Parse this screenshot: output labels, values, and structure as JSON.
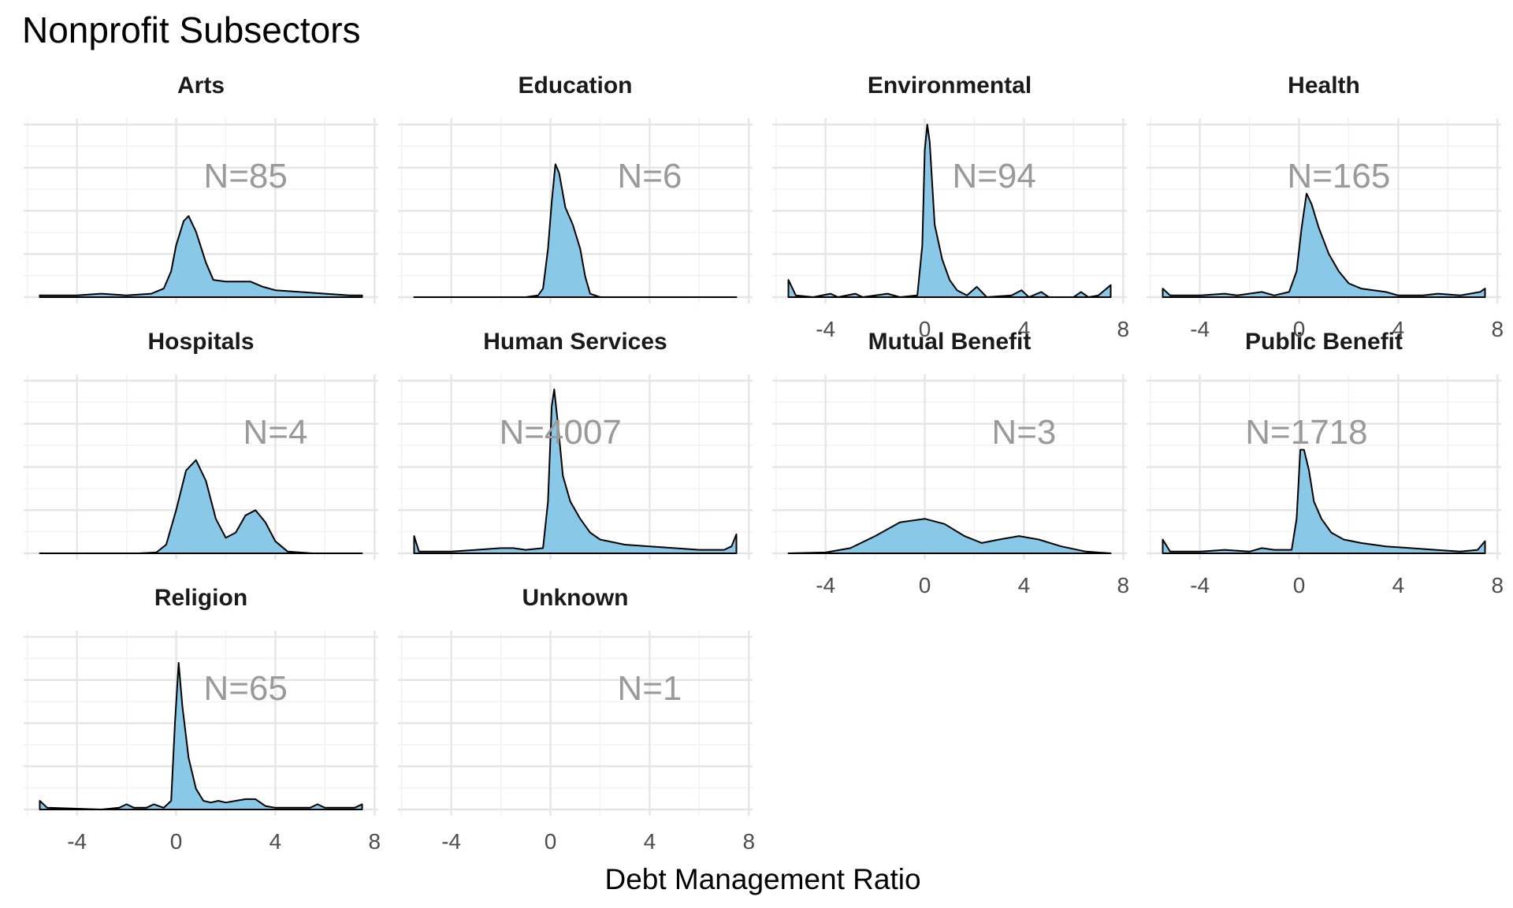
{
  "chart_data": {
    "type": "area",
    "chart_kind": "faceted density",
    "title": "Nonprofit Subsectors",
    "xlabel": "Debt Management Ratio",
    "ylabel": "",
    "xlim": [
      -5.5,
      7.5
    ],
    "x_ticks": [
      -4,
      0,
      4,
      8
    ],
    "x_tick_labels": [
      "-4",
      "0",
      "4",
      "8"
    ],
    "grid": true,
    "fill_color": "#89c8e6",
    "line_color": "#000000",
    "annotation_color": "#9a9a9a",
    "panels": [
      {
        "name": "Arts",
        "annotation": "N=85",
        "annotation_x": 2.8,
        "x_axis_labels_shown": false,
        "density": [
          [
            -5.5,
            0.01
          ],
          [
            -4,
            0.01
          ],
          [
            -3,
            0.02
          ],
          [
            -2,
            0.01
          ],
          [
            -1,
            0.02
          ],
          [
            -0.5,
            0.05
          ],
          [
            -0.2,
            0.15
          ],
          [
            0,
            0.3
          ],
          [
            0.3,
            0.44
          ],
          [
            0.5,
            0.47
          ],
          [
            0.8,
            0.38
          ],
          [
            1.2,
            0.2
          ],
          [
            1.5,
            0.1
          ],
          [
            2,
            0.09
          ],
          [
            2.5,
            0.09
          ],
          [
            3,
            0.09
          ],
          [
            3.5,
            0.06
          ],
          [
            4,
            0.04
          ],
          [
            5,
            0.03
          ],
          [
            6,
            0.02
          ],
          [
            7,
            0.01
          ],
          [
            7.5,
            0.01
          ]
        ]
      },
      {
        "name": "Education",
        "annotation": "N=6",
        "annotation_x": 4.0,
        "x_axis_labels_shown": false,
        "density": [
          [
            -5.5,
            0
          ],
          [
            -1,
            0
          ],
          [
            -0.5,
            0.01
          ],
          [
            -0.3,
            0.05
          ],
          [
            -0.1,
            0.28
          ],
          [
            0.05,
            0.55
          ],
          [
            0.2,
            0.77
          ],
          [
            0.35,
            0.72
          ],
          [
            0.6,
            0.52
          ],
          [
            0.9,
            0.42
          ],
          [
            1.2,
            0.28
          ],
          [
            1.4,
            0.12
          ],
          [
            1.6,
            0.02
          ],
          [
            2,
            0
          ],
          [
            7.5,
            0
          ]
        ]
      },
      {
        "name": "Environmental",
        "annotation": "N=94",
        "annotation_x": 2.8,
        "x_axis_labels_shown": true,
        "density": [
          [
            -5.5,
            0.1
          ],
          [
            -5.2,
            0.01
          ],
          [
            -4.5,
            0
          ],
          [
            -3.8,
            0.02
          ],
          [
            -3.5,
            0
          ],
          [
            -2.8,
            0.02
          ],
          [
            -2.5,
            0
          ],
          [
            -1.5,
            0.02
          ],
          [
            -1,
            0
          ],
          [
            -0.3,
            0.01
          ],
          [
            -0.1,
            0.3
          ],
          [
            0,
            0.85
          ],
          [
            0.1,
            1
          ],
          [
            0.2,
            0.9
          ],
          [
            0.4,
            0.42
          ],
          [
            0.7,
            0.22
          ],
          [
            1,
            0.1
          ],
          [
            1.3,
            0.04
          ],
          [
            1.7,
            0.01
          ],
          [
            2.1,
            0.06
          ],
          [
            2.5,
            0
          ],
          [
            3.5,
            0.01
          ],
          [
            3.9,
            0.04
          ],
          [
            4.2,
            0
          ],
          [
            4.7,
            0.03
          ],
          [
            5,
            0
          ],
          [
            6,
            0
          ],
          [
            6.3,
            0.03
          ],
          [
            6.6,
            0
          ],
          [
            7,
            0.01
          ],
          [
            7.5,
            0.07
          ]
        ]
      },
      {
        "name": "Health",
        "annotation": "N=165",
        "annotation_x": 1.6,
        "x_axis_labels_shown": true,
        "density": [
          [
            -5.5,
            0.05
          ],
          [
            -5.2,
            0.01
          ],
          [
            -4,
            0.01
          ],
          [
            -3,
            0.02
          ],
          [
            -2.5,
            0.01
          ],
          [
            -1.5,
            0.03
          ],
          [
            -1,
            0.01
          ],
          [
            -0.4,
            0.03
          ],
          [
            -0.1,
            0.15
          ],
          [
            0.1,
            0.4
          ],
          [
            0.3,
            0.6
          ],
          [
            0.5,
            0.54
          ],
          [
            0.8,
            0.4
          ],
          [
            1.2,
            0.25
          ],
          [
            1.6,
            0.15
          ],
          [
            2,
            0.08
          ],
          [
            2.5,
            0.05
          ],
          [
            3,
            0.04
          ],
          [
            3.5,
            0.03
          ],
          [
            4,
            0.01
          ],
          [
            5,
            0.01
          ],
          [
            5.6,
            0.02
          ],
          [
            6.5,
            0.01
          ],
          [
            7.3,
            0.03
          ],
          [
            7.5,
            0.05
          ]
        ]
      },
      {
        "name": "Hospitals",
        "annotation": "N=4",
        "annotation_x": 4.0,
        "x_axis_labels_shown": false,
        "density": [
          [
            -5.5,
            0
          ],
          [
            -1.5,
            0
          ],
          [
            -0.8,
            0.005
          ],
          [
            -0.4,
            0.05
          ],
          [
            0,
            0.25
          ],
          [
            0.4,
            0.48
          ],
          [
            0.8,
            0.54
          ],
          [
            1.2,
            0.42
          ],
          [
            1.6,
            0.2
          ],
          [
            2,
            0.09
          ],
          [
            2.4,
            0.12
          ],
          [
            2.8,
            0.22
          ],
          [
            3.2,
            0.25
          ],
          [
            3.6,
            0.18
          ],
          [
            4,
            0.07
          ],
          [
            4.5,
            0.01
          ],
          [
            5.5,
            0
          ],
          [
            7.5,
            0
          ]
        ]
      },
      {
        "name": "Human Services",
        "annotation": "N=4007",
        "annotation_x": 0.4,
        "x_axis_labels_shown": false,
        "density": [
          [
            -5.5,
            0.1
          ],
          [
            -5.3,
            0.01
          ],
          [
            -4,
            0.01
          ],
          [
            -3,
            0.02
          ],
          [
            -2,
            0.03
          ],
          [
            -1.5,
            0.03
          ],
          [
            -1,
            0.02
          ],
          [
            -0.3,
            0.03
          ],
          [
            -0.1,
            0.3
          ],
          [
            0.05,
            0.85
          ],
          [
            0.15,
            0.95
          ],
          [
            0.3,
            0.75
          ],
          [
            0.5,
            0.45
          ],
          [
            0.8,
            0.3
          ],
          [
            1.2,
            0.2
          ],
          [
            1.6,
            0.12
          ],
          [
            2,
            0.08
          ],
          [
            3,
            0.05
          ],
          [
            4,
            0.04
          ],
          [
            5,
            0.03
          ],
          [
            6,
            0.02
          ],
          [
            7,
            0.02
          ],
          [
            7.3,
            0.04
          ],
          [
            7.5,
            0.11
          ]
        ]
      },
      {
        "name": "Mutual Benefit",
        "annotation": "N=3",
        "annotation_x": 4.0,
        "x_axis_labels_shown": true,
        "density": [
          [
            -5.5,
            0
          ],
          [
            -4,
            0.005
          ],
          [
            -3,
            0.03
          ],
          [
            -2,
            0.1
          ],
          [
            -1,
            0.18
          ],
          [
            0,
            0.2
          ],
          [
            0.8,
            0.17
          ],
          [
            1.6,
            0.1
          ],
          [
            2.3,
            0.06
          ],
          [
            3,
            0.08
          ],
          [
            3.8,
            0.1
          ],
          [
            4.6,
            0.08
          ],
          [
            5.5,
            0.04
          ],
          [
            6.5,
            0.01
          ],
          [
            7.5,
            0
          ]
        ]
      },
      {
        "name": "Public Benefit",
        "annotation": "N=1718",
        "annotation_x": 0.3,
        "x_axis_labels_shown": true,
        "density": [
          [
            -5.5,
            0.08
          ],
          [
            -5.2,
            0.01
          ],
          [
            -4,
            0.01
          ],
          [
            -3,
            0.02
          ],
          [
            -2,
            0.01
          ],
          [
            -1.5,
            0.03
          ],
          [
            -1,
            0.02
          ],
          [
            -0.3,
            0.02
          ],
          [
            -0.1,
            0.2
          ],
          [
            0.05,
            0.6
          ],
          [
            0.2,
            0.6
          ],
          [
            0.4,
            0.48
          ],
          [
            0.6,
            0.3
          ],
          [
            0.9,
            0.2
          ],
          [
            1.3,
            0.12
          ],
          [
            1.8,
            0.08
          ],
          [
            2.5,
            0.06
          ],
          [
            3.5,
            0.04
          ],
          [
            4.5,
            0.03
          ],
          [
            5.5,
            0.02
          ],
          [
            6.5,
            0.01
          ],
          [
            7.2,
            0.02
          ],
          [
            7.5,
            0.07
          ]
        ]
      },
      {
        "name": "Religion",
        "annotation": "N=65",
        "annotation_x": 2.8,
        "x_axis_labels_shown": true,
        "density": [
          [
            -5.5,
            0.05
          ],
          [
            -5.2,
            0.01
          ],
          [
            -3,
            0
          ],
          [
            -2.3,
            0.01
          ],
          [
            -2,
            0.03
          ],
          [
            -1.7,
            0.01
          ],
          [
            -1.2,
            0.01
          ],
          [
            -0.9,
            0.03
          ],
          [
            -0.5,
            0.01
          ],
          [
            -0.2,
            0.05
          ],
          [
            -0.05,
            0.5
          ],
          [
            0.1,
            0.85
          ],
          [
            0.25,
            0.6
          ],
          [
            0.5,
            0.3
          ],
          [
            0.8,
            0.12
          ],
          [
            1.1,
            0.05
          ],
          [
            1.4,
            0.04
          ],
          [
            1.7,
            0.05
          ],
          [
            2,
            0.04
          ],
          [
            2.4,
            0.05
          ],
          [
            2.8,
            0.06
          ],
          [
            3.2,
            0.06
          ],
          [
            3.6,
            0.02
          ],
          [
            4,
            0.01
          ],
          [
            4.6,
            0.01
          ],
          [
            5.4,
            0.01
          ],
          [
            5.7,
            0.03
          ],
          [
            6,
            0.01
          ],
          [
            7.2,
            0.01
          ],
          [
            7.5,
            0.03
          ]
        ]
      },
      {
        "name": "Unknown",
        "annotation": "N=1",
        "annotation_x": 4.0,
        "x_axis_labels_shown": true,
        "density": []
      }
    ]
  }
}
